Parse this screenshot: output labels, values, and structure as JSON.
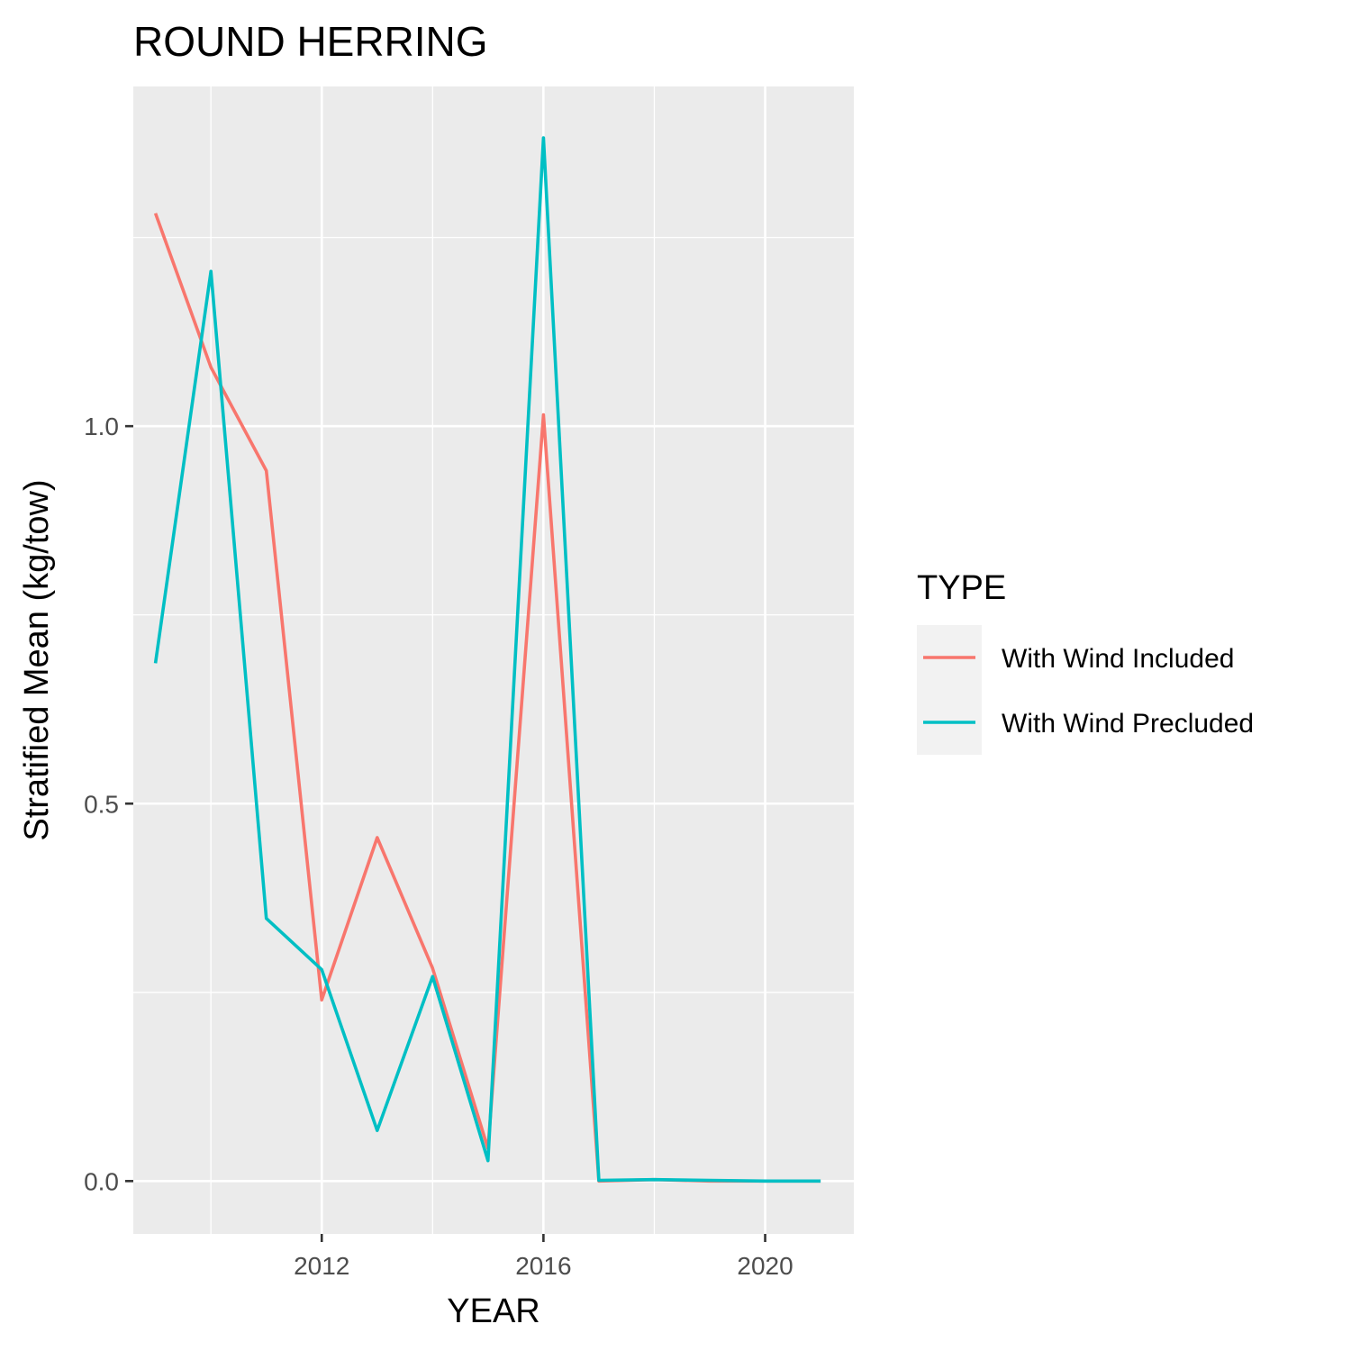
{
  "chart_data": {
    "type": "line",
    "title": "ROUND HERRING",
    "xlabel": "YEAR",
    "ylabel": "Stratified Mean (kg/tow)",
    "xlim": [
      2008.6,
      2021.6
    ],
    "ylim": [
      -0.07,
      1.45
    ],
    "x_ticks": [
      2012,
      2016,
      2020
    ],
    "x_tick_labels": [
      "2012",
      "2016",
      "2020"
    ],
    "x_minor": [
      2010,
      2014,
      2018
    ],
    "y_ticks": [
      0.0,
      0.5,
      1.0
    ],
    "y_tick_labels": [
      "0.0",
      "0.5",
      "1.0"
    ],
    "y_minor": [
      0.25,
      0.75,
      1.25
    ],
    "grid": true,
    "legend": {
      "title": "TYPE",
      "position": "right"
    },
    "series": [
      {
        "name": "With Wind Included",
        "color": "#F8766D",
        "x": [
          2009,
          2010,
          2011,
          2012,
          2013,
          2014,
          2015,
          2016,
          2017,
          2018,
          2019,
          2020,
          2021
        ],
        "y": [
          1.282,
          1.078,
          0.941,
          0.24,
          0.455,
          0.282,
          0.043,
          1.015,
          0.0,
          0.002,
          0.0,
          0.0,
          0.0
        ]
      },
      {
        "name": "With Wind Precluded",
        "color": "#00BFC4",
        "x": [
          2009,
          2010,
          2011,
          2012,
          2013,
          2014,
          2015,
          2016,
          2017,
          2018,
          2019,
          2020,
          2021
        ],
        "y": [
          0.686,
          1.205,
          0.348,
          0.28,
          0.067,
          0.271,
          0.027,
          1.382,
          0.001,
          0.002,
          0.001,
          0.0,
          0.0
        ]
      }
    ]
  }
}
